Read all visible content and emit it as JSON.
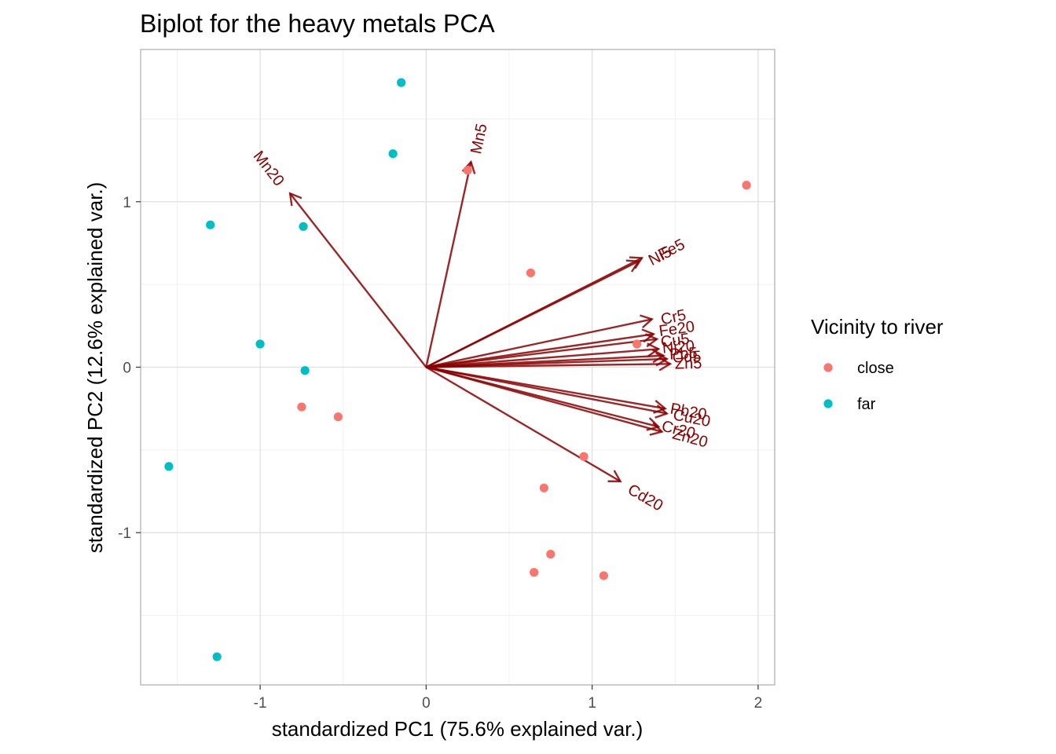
{
  "chart_data": {
    "type": "scatter",
    "title": "Biplot for the heavy metals PCA",
    "xlabel": "standardized PC1 (75.6% explained var.)",
    "ylabel": "standardized PC2 (12.6% explained var.)",
    "xlim": [
      -1.72,
      2.1
    ],
    "ylim": [
      -1.92,
      1.92
    ],
    "x_ticks": [
      -1,
      0,
      1,
      2
    ],
    "x_tick_labels": [
      "-1",
      "0",
      "1",
      "2"
    ],
    "y_ticks": [
      -1,
      0,
      1
    ],
    "y_tick_labels": [
      "-1",
      "0",
      "1"
    ],
    "x_minor": [
      -1.5,
      -0.5,
      0.5,
      1.5
    ],
    "y_minor": [
      -1.5,
      -0.5,
      0.5,
      1.5
    ],
    "grid": true,
    "legend": {
      "title": "Vicinity to river",
      "position": "right",
      "entries": [
        {
          "label": "close",
          "color": "#F8766D"
        },
        {
          "label": "far",
          "color": "#00BFC4"
        }
      ]
    },
    "series": [
      {
        "name": "close",
        "color": "#F8766D",
        "points": [
          [
            0.25,
            1.19
          ],
          [
            1.93,
            1.1
          ],
          [
            0.63,
            0.57
          ],
          [
            1.27,
            0.14
          ],
          [
            -0.75,
            -0.24
          ],
          [
            -0.53,
            -0.3
          ],
          [
            0.95,
            -0.54
          ],
          [
            0.71,
            -0.73
          ],
          [
            0.75,
            -1.13
          ],
          [
            0.65,
            -1.24
          ],
          [
            1.07,
            -1.26
          ]
        ]
      },
      {
        "name": "far",
        "color": "#00BFC4",
        "points": [
          [
            -0.15,
            1.72
          ],
          [
            -0.2,
            1.29
          ],
          [
            -1.3,
            0.86
          ],
          [
            -0.74,
            0.85
          ],
          [
            -1.0,
            0.14
          ],
          [
            -0.73,
            -0.02
          ],
          [
            -1.55,
            -0.6
          ],
          [
            -1.26,
            -1.75
          ]
        ]
      }
    ],
    "loadings": {
      "color": "#8b0000",
      "arrows": [
        {
          "label": "Mn20",
          "x": -0.82,
          "y": 1.05
        },
        {
          "label": "Mn5",
          "x": 0.27,
          "y": 1.24
        },
        {
          "label": "Fe5",
          "x": 1.3,
          "y": 0.66
        },
        {
          "label": "Ni5",
          "x": 1.28,
          "y": 0.64
        },
        {
          "label": "Cr5",
          "x": 1.36,
          "y": 0.29
        },
        {
          "label": "Fe20",
          "x": 1.37,
          "y": 0.2
        },
        {
          "label": "Cu5",
          "x": 1.39,
          "y": 0.17
        },
        {
          "label": "Ni20",
          "x": 1.4,
          "y": 0.11
        },
        {
          "label": "Pb5",
          "x": 1.43,
          "y": 0.07
        },
        {
          "label": "Cd5",
          "x": 1.45,
          "y": 0.05
        },
        {
          "label": "Zn5",
          "x": 1.47,
          "y": 0.02
        },
        {
          "label": "Pb20",
          "x": 1.44,
          "y": -0.25
        },
        {
          "label": "Cu20",
          "x": 1.45,
          "y": -0.28
        },
        {
          "label": "Cr20",
          "x": 1.4,
          "y": -0.36
        },
        {
          "label": "Zn20",
          "x": 1.42,
          "y": -0.39
        },
        {
          "label": "Cd20",
          "x": 1.17,
          "y": -0.69
        }
      ],
      "label_positions": [
        {
          "label": "Mn20",
          "x": -0.95,
          "y": 1.2,
          "angle": 52
        },
        {
          "label": "Mn5",
          "x": 0.32,
          "y": 1.38,
          "angle": -78
        },
        {
          "label": "Fe5",
          "x": 1.48,
          "y": 0.71,
          "angle": -27
        },
        {
          "label": "Ni5",
          "x": 1.41,
          "y": 0.67,
          "angle": -27
        },
        {
          "label": "Cr5",
          "x": 1.49,
          "y": 0.3,
          "angle": -12
        },
        {
          "label": "Fe20",
          "x": 1.51,
          "y": 0.23,
          "angle": -8
        },
        {
          "label": "Cu5",
          "x": 1.5,
          "y": 0.16,
          "angle": -7
        },
        {
          "label": "Ni20",
          "x": 1.52,
          "y": 0.12,
          "angle": -4
        },
        {
          "label": "Pb5",
          "x": 1.55,
          "y": 0.08,
          "angle": -3
        },
        {
          "label": "Cd5",
          "x": 1.57,
          "y": 0.06,
          "angle": -2
        },
        {
          "label": "Zn5",
          "x": 1.58,
          "y": 0.02,
          "angle": -1
        },
        {
          "label": "Pb20",
          "x": 1.58,
          "y": -0.27,
          "angle": 10
        },
        {
          "label": "Cu20",
          "x": 1.6,
          "y": -0.31,
          "angle": 11
        },
        {
          "label": "Cr20",
          "x": 1.52,
          "y": -0.38,
          "angle": 14
        },
        {
          "label": "Zn20",
          "x": 1.59,
          "y": -0.43,
          "angle": 15
        },
        {
          "label": "Cd20",
          "x": 1.32,
          "y": -0.79,
          "angle": 30
        }
      ]
    }
  }
}
